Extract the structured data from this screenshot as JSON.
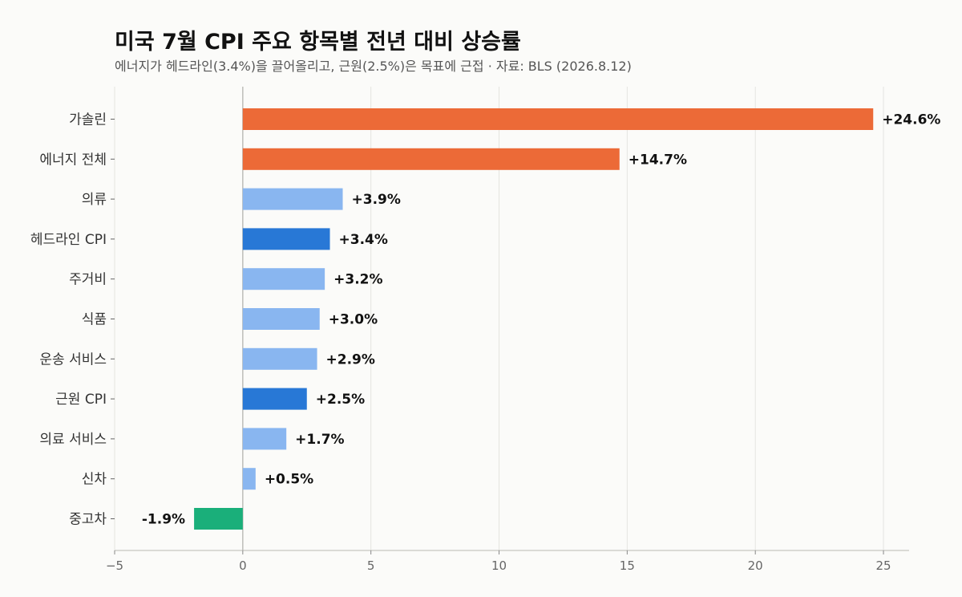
{
  "title": "미국 7월 CPI 주요 항목별 전년 대비 상승률",
  "subtitle": "에너지가 헤드라인(3.4%)을 끌어올리고, 근원(2.5%)은 목표에 근접 · 자료: BLS (2026.8.12)",
  "chart_data": {
    "type": "bar",
    "orientation": "horizontal",
    "title": "미국 7월 CPI 주요 항목별 전년 대비 상승률",
    "subtitle": "에너지가 헤드라인(3.4%)을 끌어올리고, 근원(2.5%)은 목표에 근접 · 자료: BLS (2026.8.12)",
    "xlabel": "",
    "ylabel": "",
    "xlim": [
      -5,
      26
    ],
    "xticks": [
      -5,
      0,
      5,
      10,
      15,
      20,
      25
    ],
    "xtick_labels": [
      "−5",
      "0",
      "5",
      "10",
      "15",
      "20",
      "25"
    ],
    "grid": "vertical",
    "categories": [
      "가솔린",
      "에너지 전체",
      "의류",
      "헤드라인 CPI",
      "주거비",
      "식품",
      "운송 서비스",
      "근원 CPI",
      "의료 서비스",
      "신차",
      "중고차"
    ],
    "values": [
      24.6,
      14.7,
      3.9,
      3.4,
      3.2,
      3.0,
      2.9,
      2.5,
      1.7,
      0.5,
      -1.9
    ],
    "value_labels": [
      "+24.6%",
      "+14.7%",
      "+3.9%",
      "+3.4%",
      "+3.2%",
      "+3.0%",
      "+2.9%",
      "+2.5%",
      "+1.7%",
      "+0.5%",
      "-1.9%"
    ],
    "colors": [
      "#ec6a37",
      "#ec6a37",
      "#89b6f0",
      "#2878d6",
      "#89b6f0",
      "#89b6f0",
      "#89b6f0",
      "#2878d6",
      "#89b6f0",
      "#89b6f0",
      "#1aaf7a"
    ]
  }
}
